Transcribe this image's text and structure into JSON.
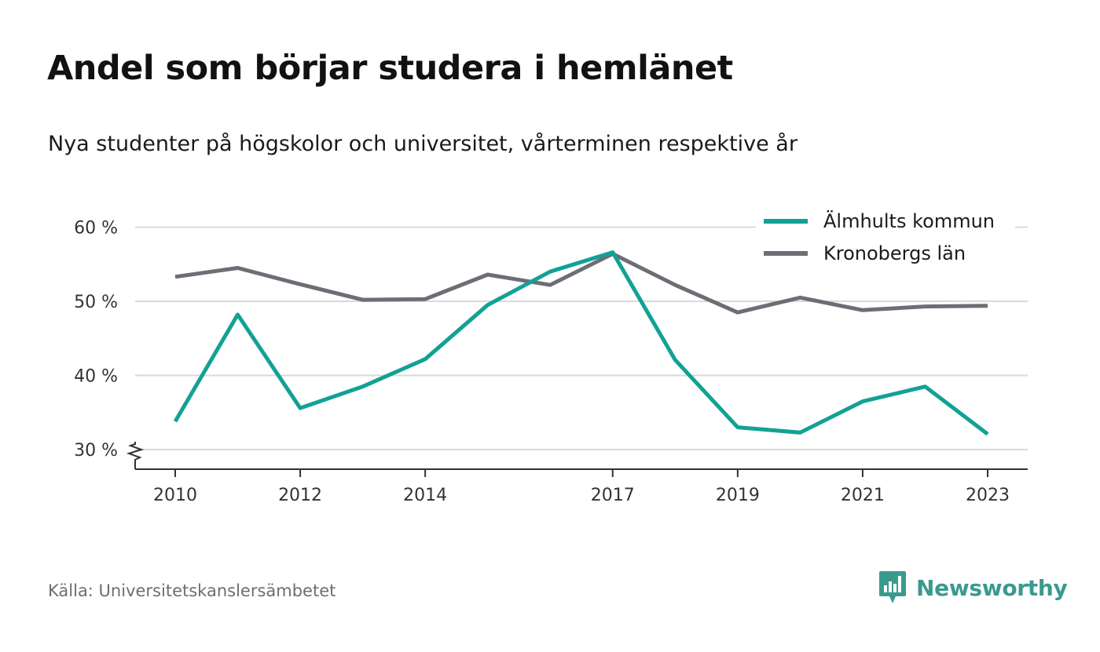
{
  "header": {
    "title": "Andel som börjar studera i hemlänet",
    "subtitle": "Nya studenter på högskolor och universitet, vårterminen respektive år"
  },
  "footer": {
    "source": "Källa: Universitetskanslersämbetet",
    "brand": "Newsworthy",
    "brand_icon": "newsworthy-logo-icon"
  },
  "colors": {
    "series_1": "#12a195",
    "series_2": "#6e6d75",
    "grid": "#d9d9d9",
    "axis": "#333333",
    "brand": "#3a9a8e"
  },
  "chart_data": {
    "type": "line",
    "title": "Andel som börjar studera i hemlänet",
    "subtitle": "Nya studenter på högskolor och universitet, vårterminen respektive år",
    "xlabel": "",
    "ylabel": "",
    "x": [
      2010,
      2011,
      2012,
      2013,
      2014,
      2015,
      2016,
      2017,
      2018,
      2019,
      2020,
      2021,
      2022,
      2023
    ],
    "x_ticks": [
      "2010",
      "2012",
      "2014",
      "2017",
      "2019",
      "2021",
      "2023"
    ],
    "y_ticks": [
      30,
      40,
      50,
      60
    ],
    "y_tick_labels": [
      "30 %",
      "40 %",
      "50 %",
      "60 %"
    ],
    "ylim": [
      27.5,
      62
    ],
    "y_axis_break": true,
    "grid": true,
    "legend_position": "top-right",
    "series": [
      {
        "name": "Älmhults kommun",
        "color": "#12a195",
        "values": [
          33.8,
          48.2,
          35.6,
          38.5,
          42.2,
          49.5,
          54.0,
          56.6,
          42.1,
          33.0,
          32.3,
          36.5,
          38.5,
          32.1
        ]
      },
      {
        "name": "Kronobergs län",
        "color": "#6e6d75",
        "values": [
          53.3,
          54.5,
          52.3,
          50.2,
          50.3,
          53.6,
          52.2,
          56.4,
          52.2,
          48.5,
          50.5,
          48.8,
          49.3,
          49.4
        ]
      }
    ]
  }
}
